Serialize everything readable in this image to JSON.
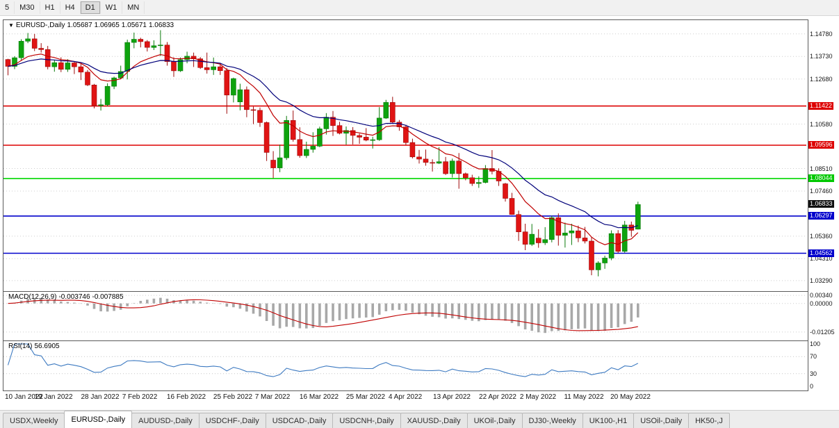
{
  "toolbar": {
    "timeframes": [
      "5",
      "M30",
      "H1",
      "H4",
      "D1",
      "W1",
      "MN"
    ],
    "active_timeframe": "D1"
  },
  "chart": {
    "title": {
      "symbol": "EURUSD-,Daily",
      "open": "1.05687",
      "high": "1.06965",
      "low": "1.05671",
      "close": "1.06833"
    }
  },
  "chart_data": {
    "type": "candlestick",
    "symbol": "EURUSD-",
    "period": "Daily",
    "price_range": {
      "top": 1.1542,
      "bottom": 1.028
    },
    "grid_color": "#cdcdcd",
    "candle_up_color": "#0ea30e",
    "candle_down_color": "#e01414",
    "grid_prices": [
      1.1478,
      1.1373,
      1.1268,
      1.1058,
      1.0851,
      1.0746,
      1.0536,
      1.0431,
      1.0329
    ],
    "price_axis": {
      "labels": [
        "1.14780",
        "1.13730",
        "1.12680",
        "1.10580",
        "1.08510",
        "1.07460",
        "1.05360",
        "1.04310",
        "1.03290"
      ],
      "badges": [
        {
          "value": "1.11422",
          "color": "#dd0000"
        },
        {
          "value": "1.09596",
          "color": "#dd0000"
        },
        {
          "value": "1.08044",
          "color": "#00c800"
        },
        {
          "value": "1.06833",
          "color": "#101010"
        },
        {
          "value": "1.06297",
          "color": "#0000cc"
        },
        {
          "value": "1.04562",
          "color": "#0000cc"
        }
      ]
    },
    "hlines": [
      {
        "price": 1.11422,
        "color": "#dd0000"
      },
      {
        "price": 1.09596,
        "color": "#dd0000"
      },
      {
        "price": 1.08044,
        "color": "#00d800"
      },
      {
        "price": 1.06297,
        "color": "#0000cc"
      },
      {
        "price": 1.04562,
        "color": "#0000cc"
      }
    ],
    "moving_averages": [
      {
        "period": 10,
        "color": "#c00000"
      },
      {
        "period": 21,
        "color": "#00007a"
      }
    ],
    "indicators": {
      "macd": {
        "name": "MACD(12,26,9)",
        "value_main": "-0.003746",
        "value_signal": "-0.007885",
        "axis_labels": [
          "0.00340",
          "0.00000",
          "-0.01205"
        ],
        "range": {
          "top": 0.0049,
          "bottom": -0.0156
        },
        "histogram_color": "#a8a8a8",
        "signal_color": "#c00000"
      },
      "rsi": {
        "name": "RSI(14)",
        "value": "56.6905",
        "axis_labels": [
          "100",
          "70",
          "30",
          "0"
        ],
        "levels": [
          70,
          30
        ],
        "line_color": "#3d7ac1"
      }
    },
    "x_axis": {
      "labels": [
        {
          "i": 0,
          "t": "10 Jan 2022"
        },
        {
          "i": 7,
          "t": "19 Jan 2022"
        },
        {
          "i": 14,
          "t": "28 Jan 2022"
        },
        {
          "i": 20,
          "t": "7 Feb 2022"
        },
        {
          "i": 27,
          "t": "16 Feb 2022"
        },
        {
          "i": 34,
          "t": "25 Feb 2022"
        },
        {
          "i": 40,
          "t": "7 Mar 2022"
        },
        {
          "i": 47,
          "t": "16 Mar 2022"
        },
        {
          "i": 54,
          "t": "25 Mar 2022"
        },
        {
          "i": 60,
          "t": "4 Apr 2022"
        },
        {
          "i": 67,
          "t": "13 Apr 2022"
        },
        {
          "i": 74,
          "t": "22 Apr 2022"
        },
        {
          "i": 80,
          "t": "2 May 2022"
        },
        {
          "i": 87,
          "t": "11 May 2022"
        },
        {
          "i": 94,
          "t": "20 May 2022"
        }
      ]
    },
    "candles": [
      [
        "2022-01-10",
        1.1359,
        1.1362,
        1.1285,
        1.1327
      ],
      [
        "2022-01-11",
        1.1327,
        1.1374,
        1.1314,
        1.1367
      ],
      [
        "2022-01-12",
        1.1367,
        1.1453,
        1.1355,
        1.1444
      ],
      [
        "2022-01-13",
        1.1444,
        1.1482,
        1.1435,
        1.1455
      ],
      [
        "2022-01-14",
        1.1455,
        1.1478,
        1.1398,
        1.1411
      ],
      [
        "2022-01-17",
        1.1411,
        1.1435,
        1.1391,
        1.1405
      ],
      [
        "2022-01-18",
        1.1405,
        1.1422,
        1.1313,
        1.1325
      ],
      [
        "2022-01-19",
        1.1325,
        1.1357,
        1.1302,
        1.1344
      ],
      [
        "2022-01-20",
        1.1344,
        1.1369,
        1.13,
        1.1313
      ],
      [
        "2022-01-21",
        1.1313,
        1.136,
        1.1301,
        1.1343
      ],
      [
        "2022-01-24",
        1.1343,
        1.1349,
        1.1291,
        1.1325
      ],
      [
        "2022-01-25",
        1.1325,
        1.1339,
        1.1263,
        1.13
      ],
      [
        "2022-01-26",
        1.13,
        1.131,
        1.1235,
        1.124
      ],
      [
        "2022-01-27",
        1.124,
        1.1245,
        1.1131,
        1.1144
      ],
      [
        "2022-01-28",
        1.1144,
        1.1175,
        1.1121,
        1.1148
      ],
      [
        "2022-01-31",
        1.1148,
        1.1248,
        1.1141,
        1.1234
      ],
      [
        "2022-02-01",
        1.1234,
        1.1279,
        1.1221,
        1.1273
      ],
      [
        "2022-02-02",
        1.1273,
        1.133,
        1.1267,
        1.1303
      ],
      [
        "2022-02-03",
        1.1303,
        1.1451,
        1.1266,
        1.1438
      ],
      [
        "2022-02-04",
        1.1438,
        1.1484,
        1.1411,
        1.1453
      ],
      [
        "2022-02-07",
        1.1453,
        1.146,
        1.1415,
        1.1442
      ],
      [
        "2022-02-08",
        1.1442,
        1.1449,
        1.1396,
        1.1415
      ],
      [
        "2022-02-09",
        1.1415,
        1.1448,
        1.1403,
        1.1423
      ],
      [
        "2022-02-10",
        1.1423,
        1.1495,
        1.1375,
        1.1426
      ],
      [
        "2022-02-11",
        1.1426,
        1.144,
        1.133,
        1.1349
      ],
      [
        "2022-02-14",
        1.1349,
        1.1369,
        1.1278,
        1.1306
      ],
      [
        "2022-02-15",
        1.1306,
        1.1368,
        1.1301,
        1.1358
      ],
      [
        "2022-02-16",
        1.1358,
        1.1395,
        1.1341,
        1.1374
      ],
      [
        "2022-02-17",
        1.1374,
        1.1391,
        1.1324,
        1.1362
      ],
      [
        "2022-02-18",
        1.1362,
        1.137,
        1.1315,
        1.1321
      ],
      [
        "2022-02-21",
        1.1321,
        1.1391,
        1.1293,
        1.1311
      ],
      [
        "2022-02-22",
        1.1311,
        1.1368,
        1.1287,
        1.1325
      ],
      [
        "2022-02-23",
        1.1325,
        1.1342,
        1.1287,
        1.1307
      ],
      [
        "2022-02-24",
        1.1307,
        1.1319,
        1.1106,
        1.1193
      ],
      [
        "2022-02-25",
        1.1193,
        1.1274,
        1.1159,
        1.127
      ],
      [
        "2022-02-28",
        1.1161,
        1.1246,
        1.1122,
        1.1218
      ],
      [
        "2022-03-01",
        1.1218,
        1.1233,
        1.109,
        1.1125
      ],
      [
        "2022-03-02",
        1.1125,
        1.1139,
        1.1058,
        1.1122
      ],
      [
        "2022-03-03",
        1.1122,
        1.1135,
        1.1045,
        1.1065
      ],
      [
        "2022-03-04",
        1.1065,
        1.107,
        1.0886,
        1.0926
      ],
      [
        "2022-03-07",
        1.089,
        1.0932,
        1.0806,
        1.0854
      ],
      [
        "2022-03-08",
        1.0854,
        1.0962,
        1.0834,
        1.0901
      ],
      [
        "2022-03-09",
        1.0901,
        1.1096,
        1.0891,
        1.1075
      ],
      [
        "2022-03-10",
        1.1075,
        1.1121,
        1.0976,
        1.0986
      ],
      [
        "2022-03-11",
        1.0986,
        1.1043,
        1.0901,
        1.0911
      ],
      [
        "2022-03-14",
        1.0911,
        1.0976,
        1.09,
        1.094
      ],
      [
        "2022-03-15",
        1.094,
        1.102,
        1.0925,
        1.0955
      ],
      [
        "2022-03-16",
        1.0955,
        1.1046,
        1.095,
        1.1036
      ],
      [
        "2022-03-17",
        1.1036,
        1.1109,
        1.1009,
        1.109
      ],
      [
        "2022-03-18",
        1.109,
        1.1119,
        1.1003,
        1.1051
      ],
      [
        "2022-03-21",
        1.1051,
        1.1069,
        1.101,
        1.1015
      ],
      [
        "2022-03-22",
        1.1015,
        1.1047,
        1.0962,
        1.1028
      ],
      [
        "2022-03-23",
        1.1028,
        1.1044,
        1.0963,
        1.1005
      ],
      [
        "2022-03-24",
        1.1005,
        1.1014,
        1.0966,
        1.0997
      ],
      [
        "2022-03-25",
        1.0997,
        1.1039,
        1.0978,
        1.0983
      ],
      [
        "2022-03-28",
        1.0983,
        1.0999,
        1.0944,
        1.0985
      ],
      [
        "2022-03-29",
        1.0985,
        1.1137,
        1.098,
        1.1086
      ],
      [
        "2022-03-30",
        1.1086,
        1.1171,
        1.1082,
        1.1159
      ],
      [
        "2022-03-31",
        1.1159,
        1.1185,
        1.1061,
        1.1067
      ],
      [
        "2022-04-01",
        1.1067,
        1.1077,
        1.1027,
        1.1045
      ],
      [
        "2022-04-04",
        1.1045,
        1.1055,
        1.096,
        1.0972
      ],
      [
        "2022-04-05",
        1.0972,
        1.099,
        1.0898,
        1.0905
      ],
      [
        "2022-04-06",
        1.0905,
        1.0938,
        1.0874,
        1.0895
      ],
      [
        "2022-04-07",
        1.0895,
        1.0939,
        1.0864,
        1.0879
      ],
      [
        "2022-04-08",
        1.0879,
        1.0894,
        1.0837,
        1.0876
      ],
      [
        "2022-04-11",
        1.0876,
        1.095,
        1.0872,
        1.0883
      ],
      [
        "2022-04-12",
        1.0883,
        1.0905,
        1.0821,
        1.0827
      ],
      [
        "2022-04-13",
        1.0827,
        1.0897,
        1.0809,
        1.0886
      ],
      [
        "2022-04-14",
        1.0886,
        1.0923,
        1.0757,
        1.0827
      ],
      [
        "2022-04-15",
        1.0827,
        1.0832,
        1.0796,
        1.0808
      ],
      [
        "2022-04-18",
        1.0808,
        1.0822,
        1.077,
        1.0781
      ],
      [
        "2022-04-19",
        1.0781,
        1.0815,
        1.0761,
        1.0786
      ],
      [
        "2022-04-20",
        1.0786,
        1.0867,
        1.0782,
        1.0851
      ],
      [
        "2022-04-21",
        1.0851,
        1.0937,
        1.0824,
        1.0838
      ],
      [
        "2022-04-22",
        1.0838,
        1.0852,
        1.077,
        1.0793
      ],
      [
        "2022-04-25",
        1.078,
        1.0784,
        1.0697,
        1.0712
      ],
      [
        "2022-04-26",
        1.0712,
        1.0738,
        1.0635,
        1.0637
      ],
      [
        "2022-04-27",
        1.0637,
        1.0655,
        1.0514,
        1.0556
      ],
      [
        "2022-04-28",
        1.0556,
        1.0594,
        1.0471,
        1.0498
      ],
      [
        "2022-04-29",
        1.0498,
        1.0593,
        1.049,
        1.0545
      ],
      [
        "2022-05-02",
        1.0527,
        1.0568,
        1.0482,
        1.0505
      ],
      [
        "2022-05-03",
        1.0505,
        1.0578,
        1.0495,
        1.052
      ],
      [
        "2022-05-04",
        1.052,
        1.0631,
        1.0507,
        1.0622
      ],
      [
        "2022-05-05",
        1.0622,
        1.0642,
        1.0492,
        1.054
      ],
      [
        "2022-05-06",
        1.054,
        1.0599,
        1.0483,
        1.0551
      ],
      [
        "2022-05-09",
        1.0551,
        1.0594,
        1.0495,
        1.0561
      ],
      [
        "2022-05-10",
        1.0561,
        1.0585,
        1.0508,
        1.0528
      ],
      [
        "2022-05-11",
        1.0528,
        1.0579,
        1.0502,
        1.0513
      ],
      [
        "2022-05-12",
        1.0513,
        1.0531,
        1.0354,
        1.0379
      ],
      [
        "2022-05-13",
        1.0379,
        1.0419,
        1.0349,
        1.0411
      ],
      [
        "2022-05-16",
        1.0411,
        1.0445,
        1.0384,
        1.0434
      ],
      [
        "2022-05-17",
        1.0434,
        1.0563,
        1.0424,
        1.0548
      ],
      [
        "2022-05-18",
        1.0548,
        1.0564,
        1.0458,
        1.0465
      ],
      [
        "2022-05-19",
        1.0465,
        1.0607,
        1.0459,
        1.0588
      ],
      [
        "2022-05-20",
        1.0588,
        1.0604,
        1.0533,
        1.0563
      ],
      [
        "2022-05-23",
        1.05687,
        1.06965,
        1.05671,
        1.06833
      ]
    ]
  },
  "tabbar": {
    "active": "EURUSD-,Daily",
    "tabs": [
      "USDX,Weekly",
      "EURUSD-,Daily",
      "AUDUSD-,Daily",
      "USDCHF-,Daily",
      "USDCAD-,Daily",
      "USDCNH-,Daily",
      "XAUUSD-,Daily",
      "UKOil-,Daily",
      "DJ30-,Weekly",
      "UK100-,H1",
      "USOil-,Daily",
      "HK50-,J"
    ]
  }
}
